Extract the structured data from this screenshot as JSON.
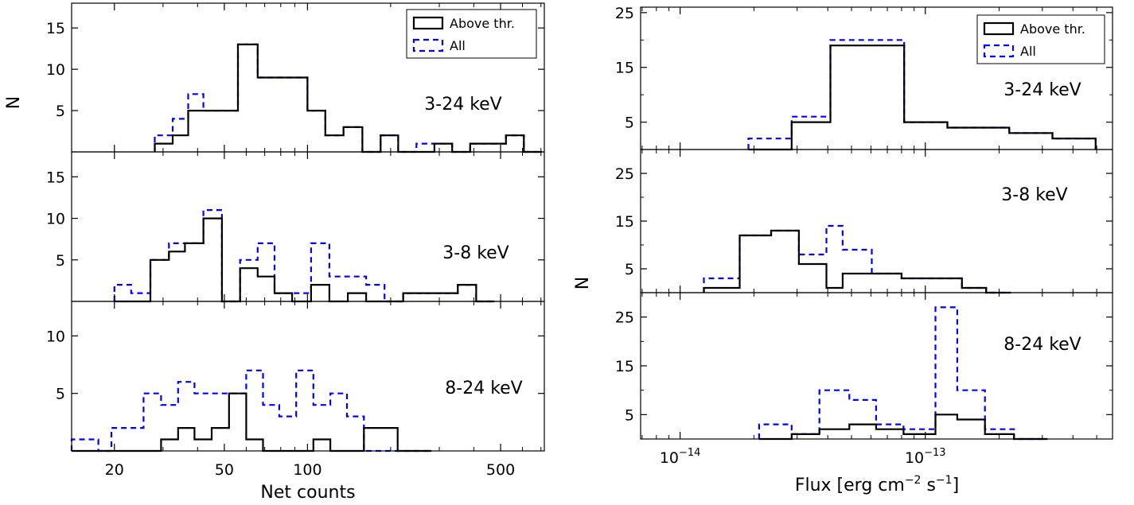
{
  "figure": {
    "left_xlabel": "Net counts",
    "left_ylabel": "N",
    "right_xlabel_main": "Flux [erg cm",
    "right_xlabel_exp1": "−2",
    "right_xlabel_mid": " s",
    "right_xlabel_exp2": "−1",
    "right_xlabel_end": "]",
    "right_ylabel": "N",
    "left_xticks": [
      {
        "value": 20,
        "label": "20"
      },
      {
        "value": 50,
        "label": "50"
      },
      {
        "value": 100,
        "label": "100"
      },
      {
        "value": 500,
        "label": "500"
      }
    ],
    "right_xticks": [
      {
        "value": 1e-14,
        "base": "10",
        "exp": "−14"
      },
      {
        "value": 1e-13,
        "base": "10",
        "exp": "−13"
      }
    ],
    "legend": {
      "above": "Above thr.",
      "all": "All"
    },
    "colors": {
      "above": "#000000",
      "all": "#0000ff"
    }
  },
  "chart_data": [
    {
      "type": "histogram-step",
      "panel": "left-top",
      "band_label": "3-24 keV",
      "xscale": "log",
      "xlim": [
        14,
        720
      ],
      "ylim": [
        0,
        18
      ],
      "yticks": [
        5,
        10,
        15
      ],
      "xlabel": "Net counts",
      "ylabel": "N",
      "legend": true,
      "edges": [
        28,
        32.5,
        37,
        42,
        56,
        66,
        87,
        100,
        116,
        135,
        158,
        184,
        213,
        248,
        288,
        334,
        388,
        450,
        523,
        607,
        705
      ],
      "series": [
        {
          "name": "Above thr.",
          "style": "solid",
          "color": "#000000",
          "values": [
            1,
            2,
            5,
            5,
            13,
            9,
            9,
            5,
            2,
            3,
            0,
            2,
            0,
            0,
            1,
            0,
            1,
            1,
            2,
            0
          ]
        },
        {
          "name": "All",
          "style": "dashed",
          "color": "#0000ff",
          "values": [
            2,
            4,
            7,
            5,
            13,
            9,
            9,
            5,
            2,
            3,
            0,
            2,
            0,
            1,
            1,
            0,
            1,
            1,
            2,
            0
          ]
        }
      ]
    },
    {
      "type": "histogram-step",
      "panel": "left-middle",
      "band_label": "3-8 keV",
      "xscale": "log",
      "xlim": [
        14,
        720
      ],
      "ylim": [
        0,
        18
      ],
      "yticks": [
        5,
        10,
        15
      ],
      "legend": false,
      "edges": [
        20,
        23,
        27,
        31.5,
        36,
        42,
        49,
        57,
        66,
        76,
        88,
        103,
        120,
        140,
        163,
        190,
        222,
        258,
        300,
        350,
        408,
        475
      ],
      "series": [
        {
          "name": "Above thr.",
          "style": "solid",
          "color": "#000000",
          "values": [
            0,
            0,
            5,
            6,
            7,
            10,
            0,
            4,
            3,
            1,
            0,
            2,
            0,
            1,
            0,
            0,
            1,
            1,
            1,
            2,
            0
          ]
        },
        {
          "name": "All",
          "style": "dashed",
          "color": "#0000ff",
          "values": [
            2,
            1,
            5,
            7,
            7,
            11,
            0,
            5,
            7,
            1,
            1,
            7,
            3,
            3,
            2,
            0,
            1,
            1,
            1,
            2,
            0
          ]
        }
      ]
    },
    {
      "type": "histogram-step",
      "panel": "left-bottom",
      "band_label": "8-24 keV",
      "xscale": "log",
      "xlim": [
        14,
        720
      ],
      "ylim": [
        0,
        13
      ],
      "yticks": [
        5,
        10
      ],
      "legend": false,
      "edges": [
        14,
        15.5,
        17.5,
        19.5,
        22,
        25.5,
        29.5,
        34,
        39,
        45,
        52,
        60,
        69,
        79,
        91,
        105,
        121,
        139,
        160,
        184,
        212,
        244,
        281
      ],
      "series": [
        {
          "name": "Above thr.",
          "style": "solid",
          "color": "#000000",
          "values": [
            0,
            0,
            0,
            0,
            0,
            0,
            1,
            2,
            1,
            2,
            5,
            1,
            0,
            0,
            0,
            1,
            0,
            0,
            2,
            2,
            0,
            0
          ]
        },
        {
          "name": "All",
          "style": "dashed",
          "color": "#0000ff",
          "values": [
            1,
            1,
            0,
            2,
            2,
            5,
            4,
            6,
            5,
            5,
            5,
            7,
            4,
            3,
            7,
            4,
            5,
            3,
            0,
            0,
            0,
            0
          ]
        }
      ]
    },
    {
      "type": "histogram-step",
      "panel": "right-top",
      "band_label": "3-24 keV",
      "xscale": "log",
      "xlim": [
        6.9e-15,
        5.8e-13
      ],
      "ylim": [
        0,
        26
      ],
      "yticks": [
        5,
        15,
        25
      ],
      "xlabel": "Flux [erg cm^-2 s^-1]",
      "ylabel": "N",
      "legend": true,
      "edges": [
        1.9e-14,
        2.85e-14,
        4.1e-14,
        8.2e-14,
        1.23e-13,
        2.2e-13,
        3.3e-13,
        4.95e-13
      ],
      "series": [
        {
          "name": "Above thr.",
          "style": "solid",
          "color": "#000000",
          "values": [
            0,
            5,
            19,
            5,
            4,
            3,
            2
          ]
        },
        {
          "name": "All",
          "style": "dashed",
          "color": "#0000ff",
          "values": [
            2,
            6,
            20,
            5,
            4,
            3,
            2
          ]
        }
      ]
    },
    {
      "type": "histogram-step",
      "panel": "right-middle",
      "band_label": "3-8 keV",
      "xscale": "log",
      "xlim": [
        6.9e-15,
        5.8e-13
      ],
      "ylim": [
        0,
        30
      ],
      "yticks": [
        5,
        15,
        25
      ],
      "legend": false,
      "edges": [
        1.25e-14,
        1.75e-14,
        2.35e-14,
        3.05e-14,
        3.95e-14,
        4.6e-14,
        6.05e-14,
        8e-14,
        1.05e-13,
        1.41e-13,
        1.77e-13,
        2.23e-13
      ],
      "series": [
        {
          "name": "Above thr.",
          "style": "solid",
          "color": "#000000",
          "values": [
            1,
            12,
            13,
            6,
            1,
            4,
            4,
            3,
            3,
            1,
            0
          ]
        },
        {
          "name": "All",
          "style": "dashed",
          "color": "#0000ff",
          "values": [
            3,
            12,
            13,
            8,
            14,
            9,
            4,
            3,
            3,
            1,
            0
          ]
        }
      ]
    },
    {
      "type": "histogram-step",
      "panel": "right-bottom",
      "band_label": "8-24 keV",
      "xscale": "log",
      "xlim": [
        6.9e-15,
        5.8e-13
      ],
      "ylim": [
        0,
        30
      ],
      "yticks": [
        5,
        15,
        25
      ],
      "legend": false,
      "edges": [
        2.1e-14,
        2.85e-14,
        3.7e-14,
        4.9e-14,
        6.3e-14,
        8.15e-14,
        1.1e-13,
        1.35e-13,
        1.75e-13,
        2.3e-13,
        3.15e-13
      ],
      "series": [
        {
          "name": "Above thr.",
          "style": "solid",
          "color": "#000000",
          "values": [
            0,
            1,
            2,
            3,
            2,
            1,
            5,
            4,
            1,
            0
          ]
        },
        {
          "name": "All",
          "style": "dashed",
          "color": "#0000ff",
          "values": [
            3,
            1,
            10,
            8,
            3,
            2,
            27,
            10,
            2,
            0
          ]
        }
      ]
    }
  ]
}
